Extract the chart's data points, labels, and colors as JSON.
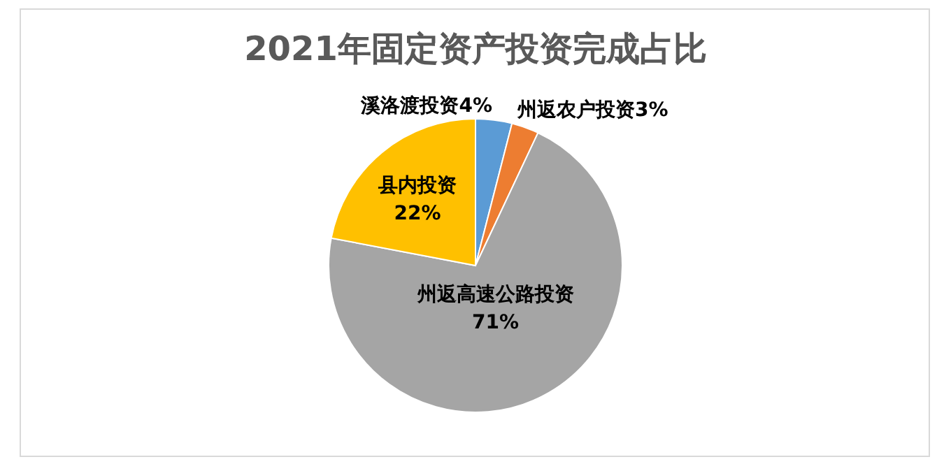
{
  "chart_data": {
    "type": "pie",
    "title": "2021年固定资产投资完成占比",
    "categories": [
      "溪洛渡投资",
      "州返农户投资",
      "州返高速公路投资",
      "县内投资"
    ],
    "values": [
      4,
      3,
      71,
      22
    ],
    "value_labels": [
      "4%",
      "3%",
      "71%",
      "22%"
    ],
    "colors": [
      "#5b9bd5",
      "#ed7d31",
      "#a5a5a5",
      "#ffc000"
    ]
  }
}
